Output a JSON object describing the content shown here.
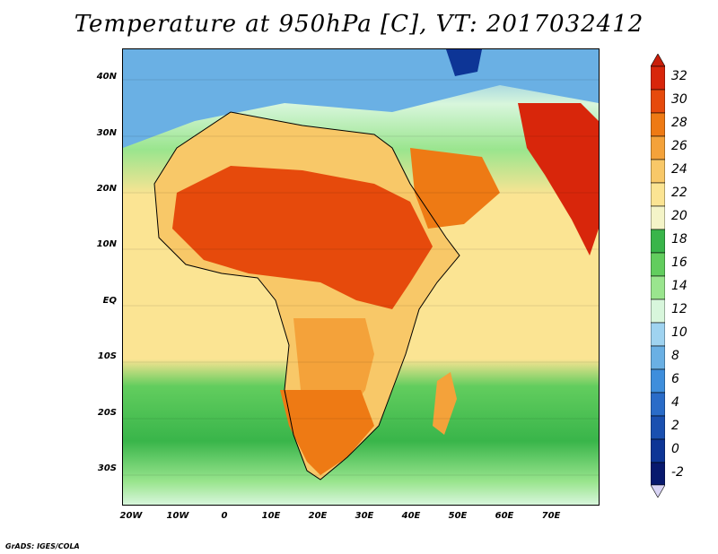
{
  "title": "Temperature at 950hPa [C], VT: 2017032412",
  "footer": "GrADS: IGES/COLA",
  "map": {
    "lat_ticks": [
      "40N",
      "30N",
      "20N",
      "10N",
      "EQ",
      "10S",
      "20S",
      "30S"
    ],
    "lon_ticks": [
      "20W",
      "10W",
      "0",
      "10E",
      "20E",
      "30E",
      "40E",
      "50E",
      "60E",
      "70E"
    ]
  },
  "colorbar": {
    "labels": [
      "32",
      "30",
      "28",
      "26",
      "24",
      "22",
      "20",
      "18",
      "16",
      "14",
      "12",
      "10",
      "8",
      "6",
      "4",
      "2",
      "0",
      "-2"
    ],
    "colors": {
      "c32": "#d8260b",
      "c30": "#e64a0c",
      "c28": "#ee7a14",
      "c26": "#f4a23a",
      "c24": "#f8c868",
      "c22": "#fbe493",
      "c20": "#f4f4c8",
      "c18": "#39b54a",
      "c16": "#62cd5e",
      "c14": "#9ae58e",
      "c12": "#d8f6dc",
      "c10": "#9fd3f0",
      "c8": "#6ab0e4",
      "c6": "#3e8edc",
      "c4": "#2a6cc8",
      "c2": "#1a50b0",
      "c0": "#0d3596",
      "cm2": "#08196e"
    }
  }
}
